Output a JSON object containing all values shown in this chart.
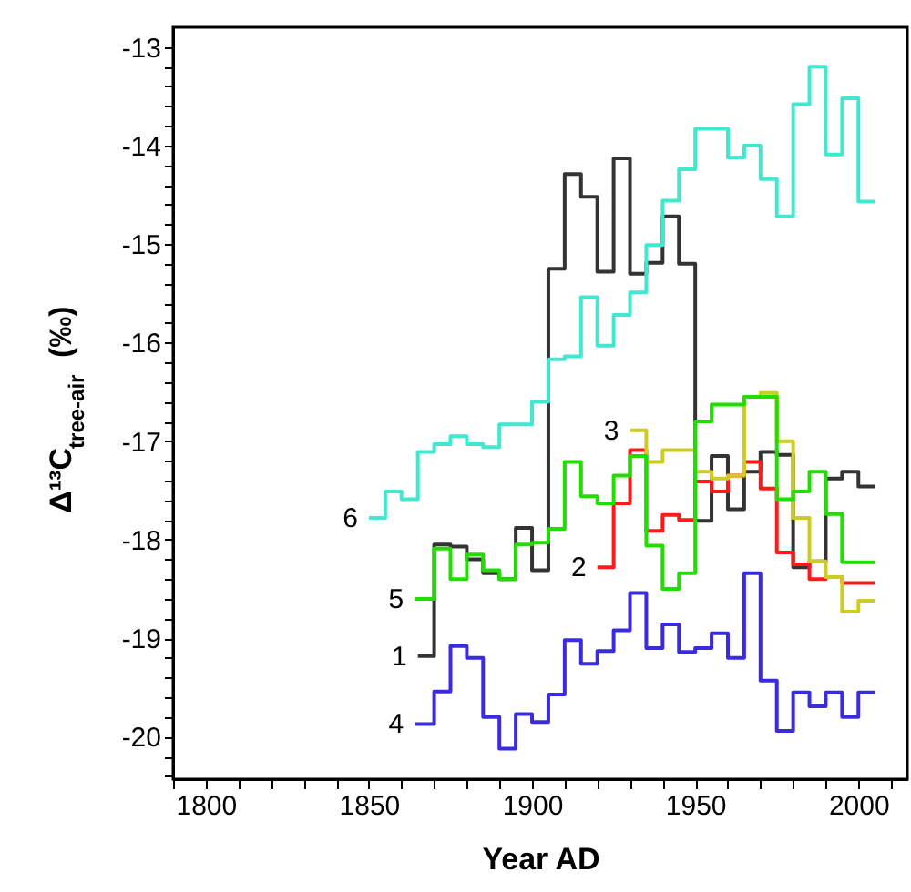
{
  "chart_data": {
    "type": "step",
    "xlabel": "Year AD",
    "ylabel": "Δ¹³C$_{tree-air}$ (‰)",
    "xlim": [
      1790,
      2015
    ],
    "ylim": [
      -20.43,
      -12.8
    ],
    "xticks": [
      {
        "value": 1790,
        "label": null
      },
      1800,
      {
        "value": 1810,
        "label": null
      },
      {
        "value": 1820,
        "label": null
      },
      {
        "value": 1830,
        "label": null
      },
      {
        "value": 1840,
        "label": null
      },
      1850,
      {
        "value": 1860,
        "label": null
      },
      {
        "value": 1870,
        "label": null
      },
      {
        "value": 1880,
        "label": null
      },
      {
        "value": 1890,
        "label": null
      },
      1900,
      {
        "value": 1910,
        "label": null
      },
      {
        "value": 1920,
        "label": null
      },
      {
        "value": 1930,
        "label": null
      },
      {
        "value": 1940,
        "label": null
      },
      1950,
      {
        "value": 1960,
        "label": null
      },
      {
        "value": 1970,
        "label": null
      },
      {
        "value": 1980,
        "label": null
      },
      {
        "value": 1990,
        "label": null
      },
      2000,
      {
        "value": 2010,
        "label": null
      }
    ],
    "yticks": [
      {
        "value": -20.4,
        "label": null
      },
      {
        "value": -20.2,
        "label": null
      },
      -20,
      {
        "value": -19.8,
        "label": null
      },
      {
        "value": -19.6,
        "label": null
      },
      {
        "value": -19.4,
        "label": null
      },
      {
        "value": -19.2,
        "label": null
      },
      -19,
      {
        "value": -18.8,
        "label": null
      },
      {
        "value": -18.6,
        "label": null
      },
      {
        "value": -18.4,
        "label": null
      },
      {
        "value": -18.2,
        "label": null
      },
      -18,
      {
        "value": -17.8,
        "label": null
      },
      {
        "value": -17.6,
        "label": null
      },
      {
        "value": -17.4,
        "label": null
      },
      {
        "value": -17.2,
        "label": null
      },
      -17,
      {
        "value": -16.8,
        "label": null
      },
      {
        "value": -16.6,
        "label": null
      },
      {
        "value": -16.4,
        "label": null
      },
      {
        "value": -16.2,
        "label": null
      },
      -16,
      {
        "value": -15.8,
        "label": null
      },
      {
        "value": -15.6,
        "label": null
      },
      {
        "value": -15.4,
        "label": null
      },
      {
        "value": -15.2,
        "label": null
      },
      -15,
      {
        "value": -14.8,
        "label": null
      },
      {
        "value": -14.6,
        "label": null
      },
      {
        "value": -14.4,
        "label": null
      },
      {
        "value": -14.2,
        "label": null
      },
      -14,
      {
        "value": -13.8,
        "label": null
      },
      {
        "value": -13.6,
        "label": null
      },
      {
        "value": -13.4,
        "label": null
      },
      {
        "value": -13.2,
        "label": null
      },
      -13
    ],
    "grid": false,
    "marker": "none",
    "line_style": "solid",
    "series": [
      {
        "name": "1",
        "color": "#333333",
        "x": [
          1865,
          1870,
          1875,
          1880,
          1885,
          1890,
          1895,
          1900,
          1905,
          1910,
          1915,
          1920,
          1925,
          1930,
          1935,
          1940,
          1945,
          1950,
          1955,
          1960,
          1965,
          1970,
          1975,
          1980,
          1985,
          1990,
          1995,
          2000,
          2005
        ],
        "values": [
          -19.18,
          -18.05,
          -18.07,
          -18.2,
          -18.34,
          -18.4,
          -17.88,
          -18.31,
          -15.25,
          -14.29,
          -14.52,
          -15.28,
          -14.13,
          -15.3,
          -15.19,
          -14.72,
          -15.2,
          -17.81,
          -17.15,
          -17.69,
          -17.31,
          -17.11,
          -17.14,
          -18.28,
          -18.22,
          -17.38,
          -17.31,
          -17.46,
          -17.46
        ]
      },
      {
        "name": "2",
        "color": "#ff1a1a",
        "x": [
          1920,
          1925,
          1930,
          1935,
          1940,
          1945,
          1950,
          1955,
          1960,
          1965,
          1970,
          1975,
          1980,
          1985,
          1990,
          1995,
          2000,
          2005
        ],
        "values": [
          -18.28,
          -17.63,
          -17.09,
          -17.91,
          -17.75,
          -17.8,
          -17.41,
          -17.51,
          -17.35,
          -17.21,
          -17.48,
          -18.13,
          -18.25,
          -18.4,
          -18.38,
          -18.44,
          -18.44,
          -18.44
        ]
      },
      {
        "name": "3",
        "color": "#cccc22",
        "x": [
          1930,
          1935,
          1940,
          1945,
          1950,
          1955,
          1960,
          1965,
          1970,
          1975,
          1980,
          1985,
          1990,
          1995,
          2000,
          2005
        ],
        "values": [
          -16.89,
          -17.21,
          -17.09,
          -17.09,
          -17.31,
          -17.38,
          -17.35,
          -16.55,
          -16.51,
          -17.0,
          -17.78,
          -18.22,
          -18.38,
          -18.73,
          -18.62,
          -18.62
        ]
      },
      {
        "name": "4",
        "color": "#3a2be0",
        "x": [
          1864,
          1870,
          1875,
          1880,
          1885,
          1890,
          1895,
          1900,
          1905,
          1910,
          1915,
          1920,
          1925,
          1930,
          1935,
          1940,
          1945,
          1950,
          1955,
          1960,
          1965,
          1970,
          1975,
          1980,
          1985,
          1990,
          1995,
          2000,
          2005
        ],
        "values": [
          -19.87,
          -19.54,
          -19.08,
          -19.2,
          -19.8,
          -20.12,
          -19.77,
          -19.85,
          -19.57,
          -19.02,
          -19.26,
          -19.13,
          -18.92,
          -18.54,
          -19.1,
          -18.86,
          -19.14,
          -19.1,
          -18.95,
          -19.2,
          -18.34,
          -19.43,
          -19.94,
          -19.55,
          -19.69,
          -19.55,
          -19.8,
          -19.55,
          -19.55
        ]
      },
      {
        "name": "5",
        "color": "#22dd00",
        "x": [
          1864,
          1870,
          1875,
          1880,
          1885,
          1890,
          1895,
          1900,
          1905,
          1910,
          1915,
          1920,
          1925,
          1930,
          1935,
          1940,
          1945,
          1950,
          1955,
          1960,
          1965,
          1970,
          1975,
          1980,
          1985,
          1990,
          1995,
          2000,
          2005
        ],
        "values": [
          -18.6,
          -18.09,
          -18.4,
          -18.15,
          -18.31,
          -18.4,
          -18.05,
          -18.03,
          -17.89,
          -17.21,
          -17.56,
          -17.63,
          -17.35,
          -17.15,
          -18.06,
          -18.5,
          -18.34,
          -16.8,
          -16.63,
          -16.63,
          -16.55,
          -16.55,
          -17.59,
          -17.51,
          -17.31,
          -17.74,
          -18.23,
          -18.23,
          -18.23
        ]
      },
      {
        "name": "6",
        "color": "#40e8d0",
        "x": [
          1850,
          1855,
          1860,
          1865,
          1870,
          1875,
          1880,
          1885,
          1890,
          1895,
          1900,
          1905,
          1910,
          1915,
          1920,
          1925,
          1930,
          1935,
          1940,
          1945,
          1950,
          1955,
          1960,
          1965,
          1970,
          1975,
          1980,
          1985,
          1990,
          1995,
          2000,
          2005
        ],
        "values": [
          -17.78,
          -17.51,
          -17.59,
          -17.11,
          -17.03,
          -16.95,
          -17.03,
          -17.06,
          -16.83,
          -16.83,
          -16.6,
          -16.17,
          -16.14,
          -15.54,
          -16.03,
          -15.72,
          -15.49,
          -15.01,
          -14.56,
          -14.24,
          -13.83,
          -13.83,
          -14.12,
          -14.0,
          -14.34,
          -14.72,
          -13.58,
          -13.2,
          -14.09,
          -13.52,
          -14.57,
          -14.57
        ]
      }
    ]
  }
}
